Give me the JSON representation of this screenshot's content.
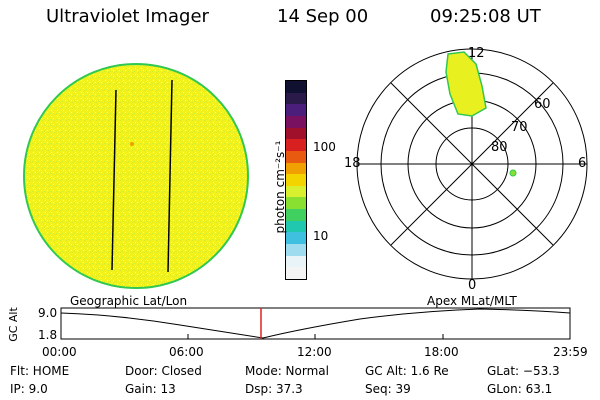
{
  "header": {
    "instrument": "Ultraviolet Imager",
    "date": "14 Sep 00",
    "time": "09:25:08 UT"
  },
  "colorbar": {
    "unit": "photon cm⁻²s⁻¹",
    "ticks": [
      "100",
      "10"
    ],
    "colors": [
      "#101030",
      "#2a1a4a",
      "#4a1e7a",
      "#7a1060",
      "#a0102a",
      "#d82020",
      "#e85a10",
      "#f0a000",
      "#f4d400",
      "#d8f030",
      "#8ae030",
      "#40d060",
      "#20c8b0",
      "#40c0e0",
      "#a0dcf0",
      "#e8f4f8",
      "#f4f4f4"
    ]
  },
  "polar": {
    "mlt_labels": [
      "12",
      "18",
      "6",
      "0"
    ],
    "lat_labels": [
      "60",
      "70",
      "80"
    ]
  },
  "timeline": {
    "left_label": "Geographic Lat/Lon",
    "right_label": "Apex  MLat/MLT",
    "axis_title": "GC Alt",
    "y_ticks": [
      "9.0",
      "1.8"
    ],
    "x_ticks": [
      "00:00",
      "06:00",
      "12:00",
      "18:00",
      "23:59"
    ],
    "marker_color": "#e02020"
  },
  "status": {
    "flt": "Flt: HOME",
    "ip": "IP:  9.0",
    "door": "Door: Closed",
    "gain": "Gain: 13",
    "mode": "Mode: Normal",
    "dsp": "Dsp:     37.3",
    "gcalt": "GC Alt: 1.6 Re",
    "seq": "Seq: 39",
    "glat": "GLat: −53.3",
    "glon": "GLon:  63.1"
  },
  "colors": {
    "disk_fill": "#f2f21a",
    "disk_edge": "#30c850",
    "aurora": "#e8f020"
  }
}
